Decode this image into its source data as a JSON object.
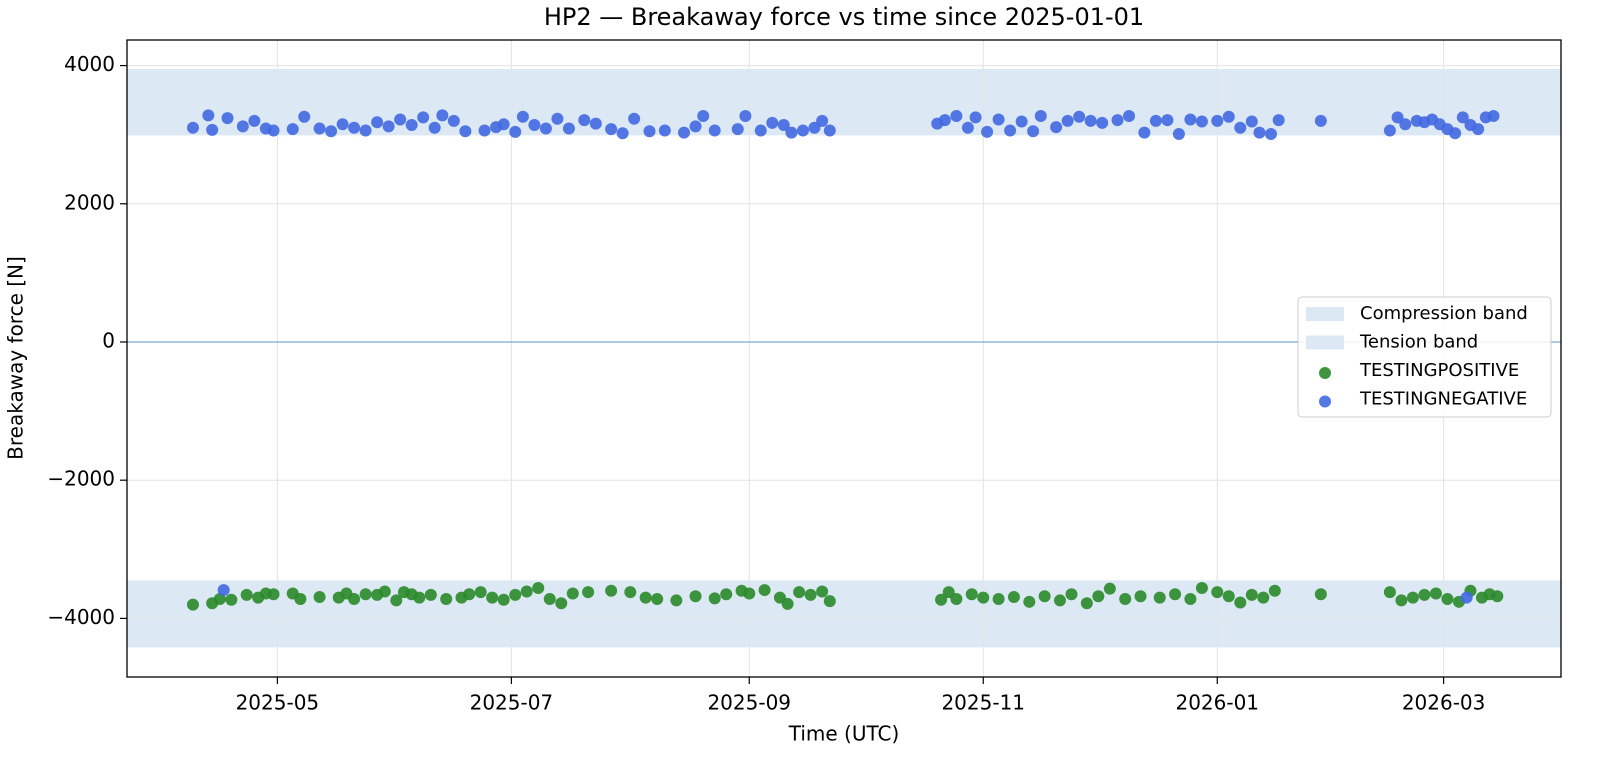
{
  "chart_data": {
    "type": "scatter",
    "title": "HP2 — Breakaway force vs time since 2025-01-01",
    "x_label": "Time (UTC)",
    "y_label": "Breakaway force [N]",
    "xlim": [
      80.8,
      454.6
    ],
    "ylim": [
      -4848,
      4370
    ],
    "xticks": [
      {
        "value": 120,
        "label": "2025-05"
      },
      {
        "value": 181,
        "label": "2025-07"
      },
      {
        "value": 243,
        "label": "2025-09"
      },
      {
        "value": 304,
        "label": "2025-11"
      },
      {
        "value": 365,
        "label": "2026-01"
      },
      {
        "value": 424,
        "label": "2026-03"
      }
    ],
    "yticks": [
      {
        "value": -4000,
        "label": "−4000"
      },
      {
        "value": -2000,
        "label": "−2000"
      },
      0,
      2000,
      4000
    ],
    "grid": true,
    "hline": {
      "value": 0,
      "color": "#8fb8db"
    },
    "bands": [
      {
        "name": "Compression band",
        "range": [
          2990,
          3950
        ],
        "color": "#dce8f3"
      },
      {
        "name": "Tension band",
        "range": [
          -4420,
          -3450
        ],
        "color": "#dce8f3"
      }
    ],
    "legend": "right",
    "series": [
      {
        "name": "TESTINGPOSITIVE",
        "color": "#2a8a2a",
        "x": [
          98,
          103,
          105,
          108,
          112,
          115,
          117,
          119,
          124,
          126,
          131,
          136,
          138,
          140,
          143,
          146,
          148,
          151,
          153,
          155,
          157,
          160,
          164,
          168,
          170,
          173,
          176,
          179,
          182,
          185,
          188,
          191,
          194,
          197,
          201,
          207,
          212,
          216,
          219,
          224,
          229,
          234,
          237,
          241,
          243,
          247,
          251,
          253,
          256,
          259,
          262,
          264,
          293,
          295,
          297,
          301,
          304,
          308,
          312,
          316,
          320,
          324,
          327,
          331,
          334,
          337,
          341,
          345,
          350,
          354,
          358,
          361,
          365,
          368,
          371,
          374,
          377,
          380,
          392,
          410,
          413,
          416,
          419,
          422,
          425,
          428,
          431,
          434,
          436,
          438
        ],
        "values": [
          -3800,
          -3780,
          -3720,
          -3730,
          -3660,
          -3700,
          -3640,
          -3650,
          -3640,
          -3720,
          -3690,
          -3700,
          -3640,
          -3720,
          -3650,
          -3660,
          -3610,
          -3740,
          -3620,
          -3650,
          -3700,
          -3660,
          -3720,
          -3700,
          -3650,
          -3620,
          -3700,
          -3730,
          -3660,
          -3610,
          -3560,
          -3720,
          -3780,
          -3640,
          -3620,
          -3600,
          -3620,
          -3700,
          -3720,
          -3740,
          -3680,
          -3710,
          -3650,
          -3600,
          -3640,
          -3590,
          -3700,
          -3790,
          -3620,
          -3660,
          -3610,
          -3750,
          -3730,
          -3620,
          -3720,
          -3650,
          -3700,
          -3720,
          -3690,
          -3760,
          -3680,
          -3740,
          -3650,
          -3780,
          -3680,
          -3570,
          -3720,
          -3680,
          -3700,
          -3650,
          -3720,
          -3560,
          -3620,
          -3680,
          -3770,
          -3660,
          -3700,
          -3600,
          -3650,
          -3620,
          -3740,
          -3700,
          -3660,
          -3640,
          -3720,
          -3760,
          -3600,
          -3700,
          -3650,
          -3680
        ]
      },
      {
        "name": "TESTINGNEGATIVE",
        "color": "#4169e1",
        "x": [
          98,
          102,
          103,
          107,
          111,
          114,
          117,
          119,
          124,
          127,
          131,
          134,
          137,
          140,
          143,
          146,
          149,
          152,
          155,
          158,
          161,
          163,
          166,
          169,
          174,
          177,
          179,
          182,
          184,
          187,
          190,
          193,
          196,
          200,
          203,
          207,
          210,
          213,
          217,
          221,
          226,
          229,
          231,
          234,
          240,
          242,
          246,
          249,
          252,
          254,
          257,
          260,
          262,
          264,
          292,
          294,
          297,
          300,
          302,
          305,
          308,
          311,
          314,
          317,
          319,
          323,
          326,
          329,
          332,
          335,
          339,
          342,
          346,
          349,
          352,
          355,
          358,
          361,
          365,
          368,
          371,
          374,
          376,
          379,
          381,
          392,
          410,
          412,
          414,
          417,
          419,
          421,
          423,
          425,
          427,
          429,
          431,
          433,
          435,
          437,
          106,
          430
        ],
        "values": [
          3100,
          3280,
          3070,
          3240,
          3120,
          3200,
          3090,
          3060,
          3080,
          3260,
          3090,
          3050,
          3150,
          3100,
          3060,
          3180,
          3120,
          3220,
          3140,
          3250,
          3100,
          3280,
          3200,
          3050,
          3060,
          3110,
          3150,
          3040,
          3260,
          3140,
          3090,
          3230,
          3090,
          3210,
          3160,
          3080,
          3020,
          3230,
          3050,
          3060,
          3030,
          3120,
          3270,
          3060,
          3080,
          3270,
          3060,
          3170,
          3140,
          3030,
          3060,
          3100,
          3200,
          3060,
          3160,
          3210,
          3270,
          3100,
          3250,
          3040,
          3220,
          3060,
          3190,
          3050,
          3270,
          3110,
          3200,
          3260,
          3200,
          3170,
          3210,
          3270,
          3030,
          3200,
          3210,
          3010,
          3220,
          3190,
          3200,
          3260,
          3100,
          3190,
          3030,
          3010,
          3210,
          3200,
          3060,
          3250,
          3150,
          3200,
          3180,
          3220,
          3150,
          3080,
          3020,
          3250,
          3140,
          3080,
          3250,
          3270,
          -3590,
          -3700
        ]
      }
    ]
  }
}
